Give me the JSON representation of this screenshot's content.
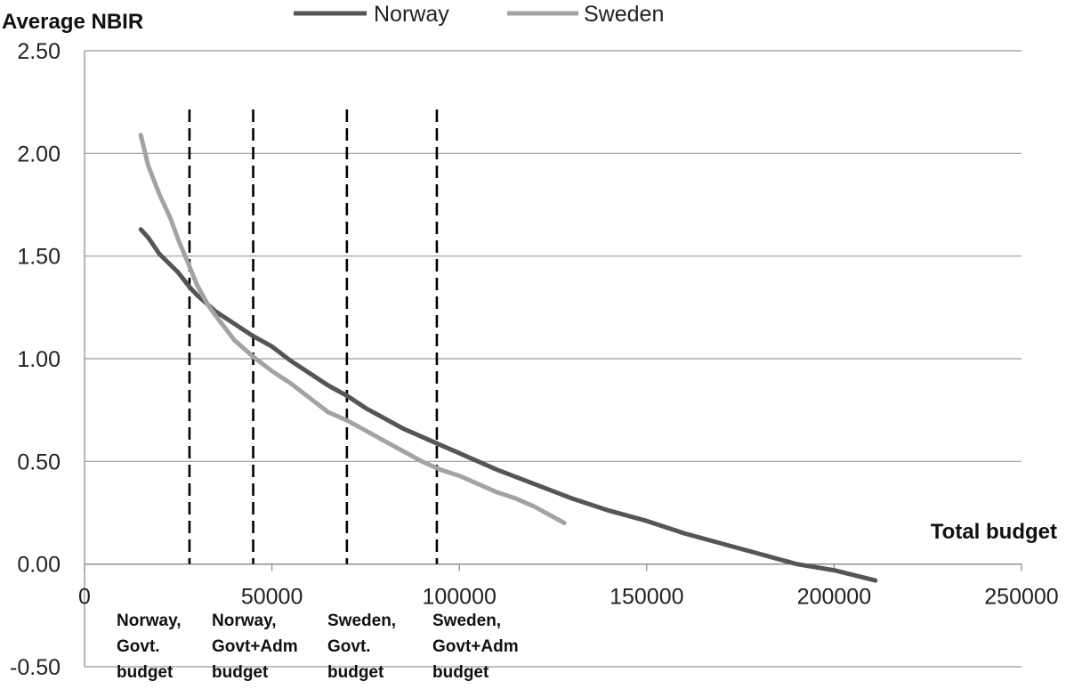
{
  "chart_data": {
    "type": "line",
    "title": "",
    "xlabel": "Total budget",
    "ylabel": "Average NBIR",
    "xlim": [
      0,
      250000
    ],
    "ylim": [
      -0.5,
      2.5
    ],
    "x_ticks": [
      0,
      50000,
      100000,
      150000,
      200000,
      250000
    ],
    "x_tick_labels": [
      "0",
      "50000",
      "100000",
      "150000",
      "200000",
      "250000"
    ],
    "y_ticks": [
      -0.5,
      0,
      0.5,
      1,
      1.5,
      2,
      2.5
    ],
    "y_tick_labels": [
      "-0.50",
      "0.00",
      "0.50",
      "1.00",
      "1.50",
      "2.00",
      "2.50"
    ],
    "grid": "horizontal",
    "legend_position": "top-center",
    "series": [
      {
        "name": "Norway",
        "color": "#555555",
        "points": [
          [
            15000,
            1.63
          ],
          [
            17000,
            1.59
          ],
          [
            20000,
            1.51
          ],
          [
            25000,
            1.42
          ],
          [
            28000,
            1.35
          ],
          [
            30000,
            1.31
          ],
          [
            35000,
            1.23
          ],
          [
            40000,
            1.17
          ],
          [
            45000,
            1.11
          ],
          [
            50000,
            1.06
          ],
          [
            55000,
            0.99
          ],
          [
            60000,
            0.93
          ],
          [
            65000,
            0.87
          ],
          [
            70000,
            0.82
          ],
          [
            75000,
            0.76
          ],
          [
            80000,
            0.71
          ],
          [
            85000,
            0.66
          ],
          [
            90000,
            0.62
          ],
          [
            95000,
            0.58
          ],
          [
            100000,
            0.54
          ],
          [
            110000,
            0.46
          ],
          [
            120000,
            0.39
          ],
          [
            130000,
            0.32
          ],
          [
            140000,
            0.26
          ],
          [
            150000,
            0.21
          ],
          [
            160000,
            0.15
          ],
          [
            170000,
            0.1
          ],
          [
            180000,
            0.05
          ],
          [
            190000,
            0.0
          ],
          [
            200000,
            -0.03
          ],
          [
            211000,
            -0.08
          ]
        ]
      },
      {
        "name": "Sweden",
        "color": "#a3a3a3",
        "points": [
          [
            15000,
            2.09
          ],
          [
            17000,
            1.94
          ],
          [
            20000,
            1.8
          ],
          [
            23000,
            1.68
          ],
          [
            25000,
            1.58
          ],
          [
            28000,
            1.45
          ],
          [
            30000,
            1.36
          ],
          [
            33000,
            1.26
          ],
          [
            35000,
            1.21
          ],
          [
            40000,
            1.09
          ],
          [
            45000,
            1.01
          ],
          [
            50000,
            0.94
          ],
          [
            55000,
            0.88
          ],
          [
            60000,
            0.81
          ],
          [
            65000,
            0.74
          ],
          [
            70000,
            0.7
          ],
          [
            75000,
            0.65
          ],
          [
            80000,
            0.6
          ],
          [
            85000,
            0.55
          ],
          [
            90000,
            0.5
          ],
          [
            95000,
            0.46
          ],
          [
            100000,
            0.43
          ],
          [
            105000,
            0.39
          ],
          [
            110000,
            0.35
          ],
          [
            115000,
            0.32
          ],
          [
            120000,
            0.28
          ],
          [
            125000,
            0.23
          ],
          [
            128000,
            0.2
          ]
        ]
      }
    ],
    "reference_lines": [
      {
        "x": 28000,
        "label_lines": [
          "Norway,",
          "Govt.",
          "budget"
        ]
      },
      {
        "x": 45000,
        "label_lines": [
          "Norway,",
          "Govt+Adm",
          "budget"
        ]
      },
      {
        "x": 70000,
        "label_lines": [
          "Sweden,",
          "Govt.",
          "budget"
        ]
      },
      {
        "x": 94000,
        "label_lines": [
          "Sweden,",
          "Govt+Adm",
          "budget"
        ]
      }
    ],
    "colors": {
      "grid": "#9a9a9a",
      "axis": "#8a8a8a",
      "reference_line": "#000000"
    }
  }
}
